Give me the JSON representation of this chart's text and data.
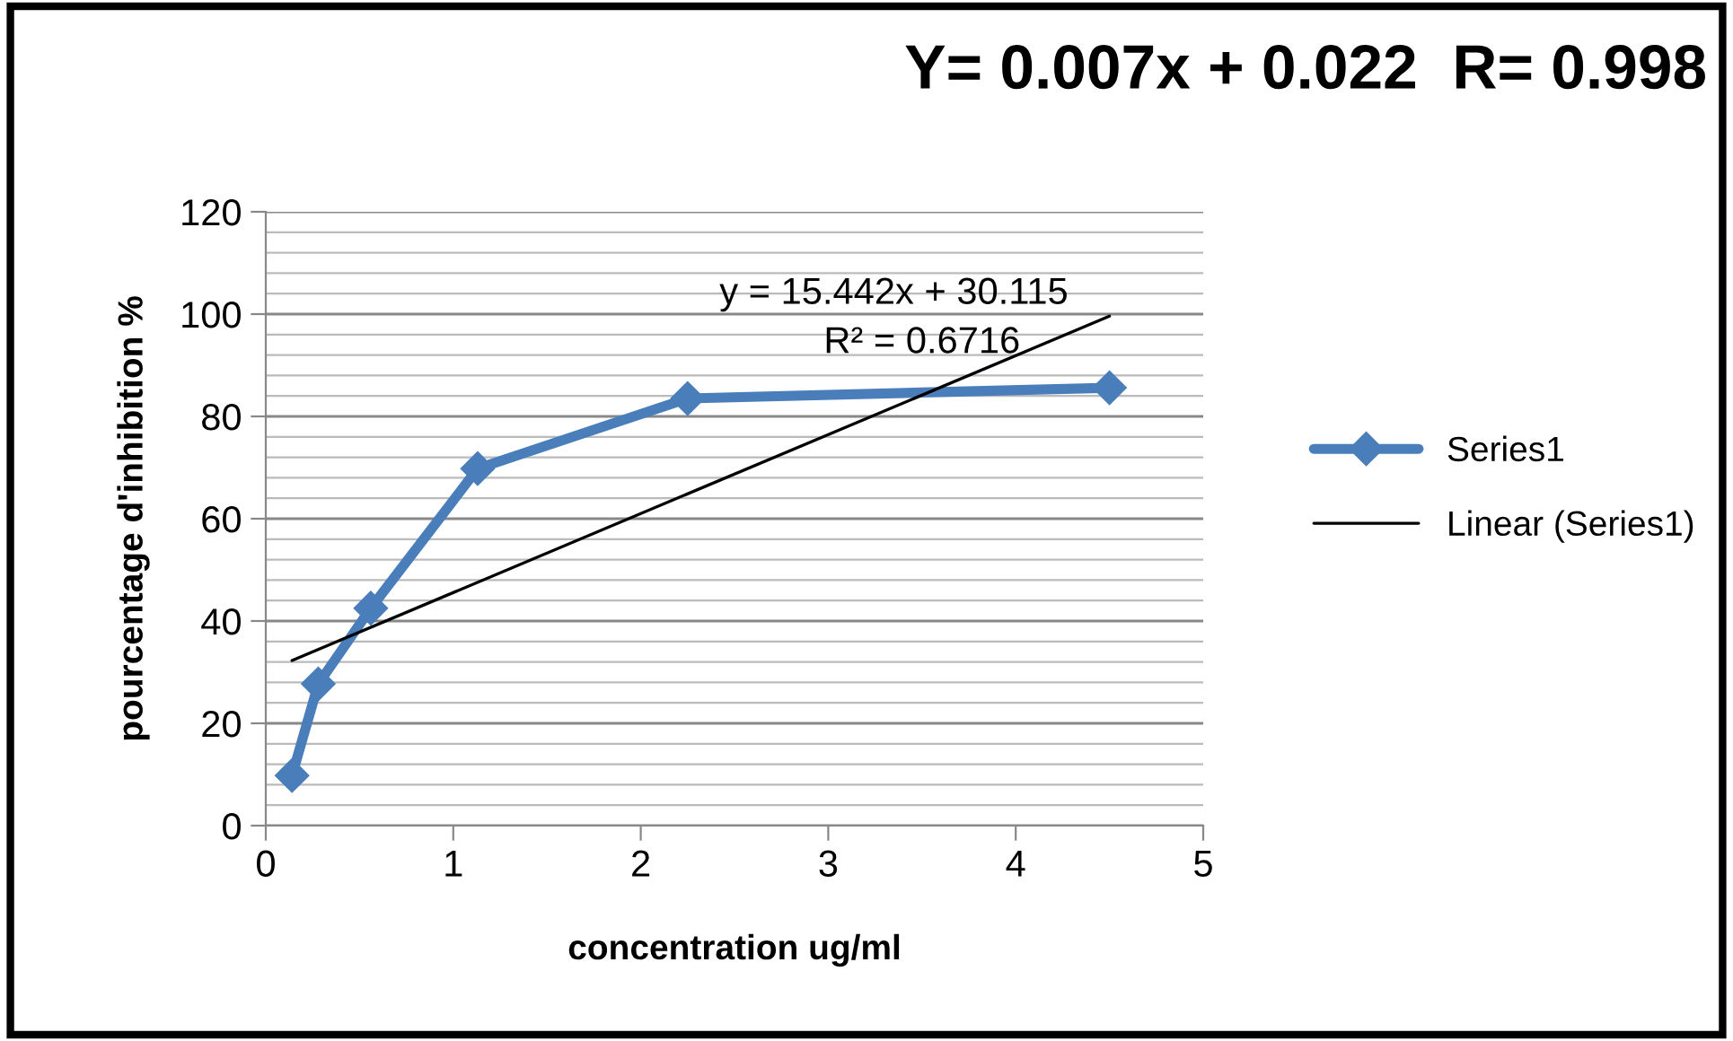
{
  "chart_data": {
    "type": "line",
    "title": "Y= 0.007x + 0.022  R= 0.998",
    "xlabel": "concentration ug/ml",
    "ylabel": "pourcentage d'inhibition %",
    "series": [
      {
        "name": "Series1",
        "color": "#4a7ebb",
        "x": [
          0.14,
          0.28,
          0.56,
          1.13,
          2.25,
          4.5
        ],
        "values": [
          9.8,
          27.7,
          42.5,
          69.8,
          83.5,
          85.6
        ],
        "marker": "diamond"
      },
      {
        "name": "Linear (Series1)",
        "color": "#000000",
        "x": [
          0.14,
          4.5
        ],
        "values": [
          32.28,
          99.6
        ],
        "marker": "none"
      }
    ],
    "annotations": [
      "y = 15.442x + 30.115",
      "R² = 0.6716"
    ],
    "xlim": [
      0,
      5
    ],
    "xticks": [
      0,
      1,
      2,
      3,
      4,
      5
    ],
    "ylim": [
      0,
      120
    ],
    "yticks": [
      0,
      20,
      40,
      60,
      80,
      100,
      120
    ],
    "grid": "y",
    "legend": "right"
  }
}
